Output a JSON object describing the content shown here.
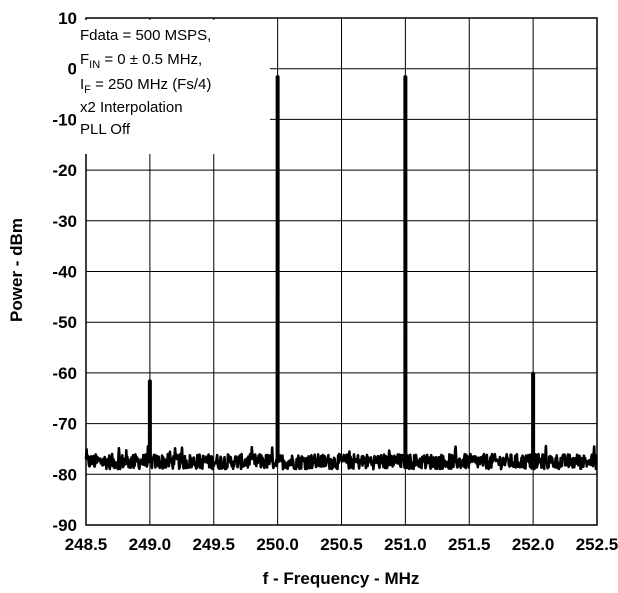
{
  "chart_data": {
    "type": "line",
    "title": "",
    "xlabel": "f - Frequency - MHz",
    "ylabel": "Power - dBm",
    "xlim": [
      248.5,
      252.5
    ],
    "ylim": [
      -90,
      10
    ],
    "x_ticks": [
      248.5,
      249.0,
      249.5,
      250.0,
      250.5,
      251.0,
      251.5,
      252.0,
      252.5
    ],
    "x_tick_labels": [
      "248.5",
      "249.0",
      "249.5",
      "250.0",
      "250.5",
      "251.0",
      "251.5",
      "252.0",
      "252.5"
    ],
    "y_ticks": [
      10,
      0,
      -10,
      -20,
      -30,
      -40,
      -50,
      -60,
      -70,
      -80,
      -90
    ],
    "y_tick_labels": [
      "10",
      "0",
      "-10",
      "-20",
      "-30",
      "-40",
      "-50",
      "-60",
      "-70",
      "-80",
      "-90"
    ],
    "grid": true,
    "noise_floor_dbm": -77.5,
    "series": [
      {
        "color": "#000000",
        "peaks": [
          {
            "x": 249.0,
            "y": -61.5
          },
          {
            "x": 250.0,
            "y": -1.5
          },
          {
            "x": 251.0,
            "y": -1.5
          },
          {
            "x": 252.0,
            "y": -60.0
          }
        ]
      }
    ],
    "annotation": {
      "line1": "Fdata = 500 MSPS,",
      "line2_prefix": "F",
      "line2_sub": "IN",
      "line2_rest": " = 0 ± 0.5  MHz,",
      "line3_prefix": "I",
      "line3_sub": "F",
      "line3_rest": " = 250 MHz (Fs/4)",
      "line4": "x2 Interpolation",
      "line5": "PLL Off"
    }
  }
}
